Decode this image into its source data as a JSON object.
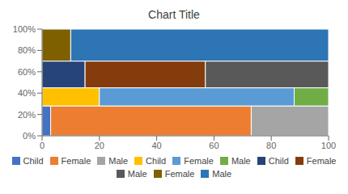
{
  "chart_data": {
    "type": "mosaic",
    "title": "Chart Title",
    "xlim": [
      0,
      100
    ],
    "ylim": [
      0,
      100
    ],
    "xticks": [
      0,
      20,
      40,
      60,
      80,
      100
    ],
    "yticks": [
      {
        "value": 0,
        "label": "0%"
      },
      {
        "value": 20,
        "label": "20%"
      },
      {
        "value": 40,
        "label": "40%"
      },
      {
        "value": 60,
        "label": "60%"
      },
      {
        "value": 80,
        "label": "80%"
      },
      {
        "value": 100,
        "label": "100%"
      }
    ],
    "grid": false,
    "legend": "bottom",
    "series": [
      {
        "name": "Child",
        "color": "#4472C4",
        "x_start": 0,
        "x_end": 3,
        "y_bottom": 0,
        "y_top": 28
      },
      {
        "name": "Female",
        "color": "#ED7D31",
        "x_start": 3,
        "x_end": 73,
        "y_bottom": 0,
        "y_top": 28
      },
      {
        "name": "Male",
        "color": "#A5A5A5",
        "x_start": 73,
        "x_end": 100,
        "y_bottom": 0,
        "y_top": 28
      },
      {
        "name": "Child",
        "color": "#FFC000",
        "x_start": 0,
        "x_end": 20,
        "y_bottom": 28,
        "y_top": 45
      },
      {
        "name": "Female",
        "color": "#5B9BD5",
        "x_start": 20,
        "x_end": 88,
        "y_bottom": 28,
        "y_top": 45
      },
      {
        "name": "Male",
        "color": "#70AD47",
        "x_start": 88,
        "x_end": 100,
        "y_bottom": 28,
        "y_top": 45
      },
      {
        "name": "Child",
        "color": "#264478",
        "x_start": 0,
        "x_end": 15,
        "y_bottom": 45,
        "y_top": 70
      },
      {
        "name": "Female",
        "color": "#843C0C",
        "x_start": 15,
        "x_end": 57,
        "y_bottom": 45,
        "y_top": 70
      },
      {
        "name": "Male",
        "color": "#595959",
        "x_start": 57,
        "x_end": 100,
        "y_bottom": 45,
        "y_top": 70
      },
      {
        "name": "Female",
        "color": "#7F6000",
        "x_start": 0,
        "x_end": 10,
        "y_bottom": 70,
        "y_top": 100
      },
      {
        "name": "Male",
        "color": "#2E75B6",
        "x_start": 10,
        "x_end": 100,
        "y_bottom": 70,
        "y_top": 100
      }
    ]
  }
}
